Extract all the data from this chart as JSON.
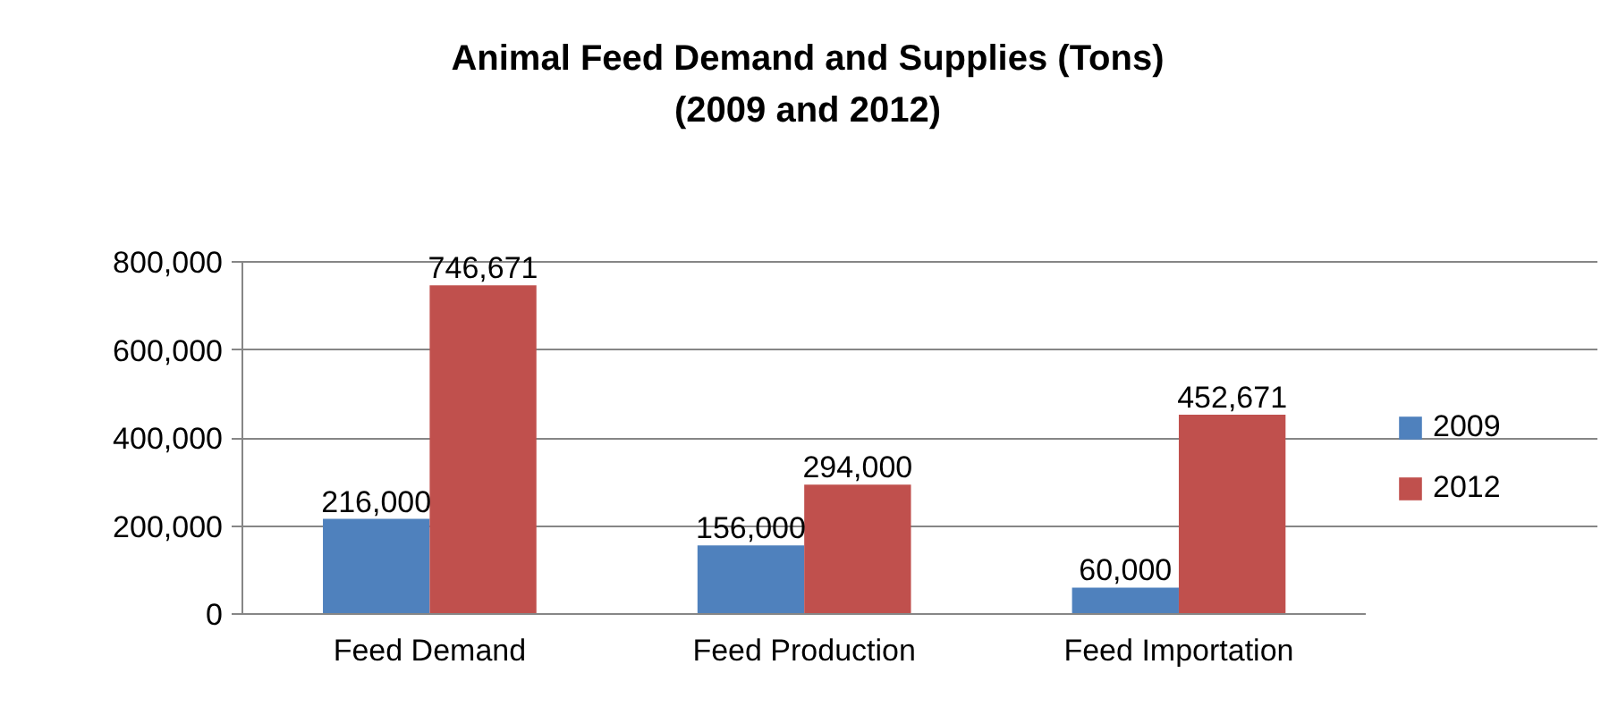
{
  "chart_data": {
    "type": "bar",
    "title": "Animal Feed Demand and Supplies (Tons)\n(2009 and 2012)",
    "categories": [
      "Feed Demand",
      "Feed Production",
      "Feed Importation"
    ],
    "series": [
      {
        "name": "2009",
        "color": "#4f81bd",
        "values": [
          216000,
          156000,
          60000
        ],
        "value_labels": [
          "216,000",
          "156,000",
          "60,000"
        ]
      },
      {
        "name": "2012",
        "color": "#c0504d",
        "values": [
          746671,
          294000,
          452671
        ],
        "value_labels": [
          "746,671",
          "294,000",
          "452,671"
        ]
      }
    ],
    "ylim": [
      0,
      800000
    ],
    "yticks": [
      {
        "value": 0,
        "label": "0"
      },
      {
        "value": 200000,
        "label": "200,000"
      },
      {
        "value": 400000,
        "label": "400,000"
      },
      {
        "value": 600000,
        "label": "600,000"
      },
      {
        "value": 800000,
        "label": "800,000"
      }
    ],
    "grid": "y",
    "legend": "right"
  }
}
